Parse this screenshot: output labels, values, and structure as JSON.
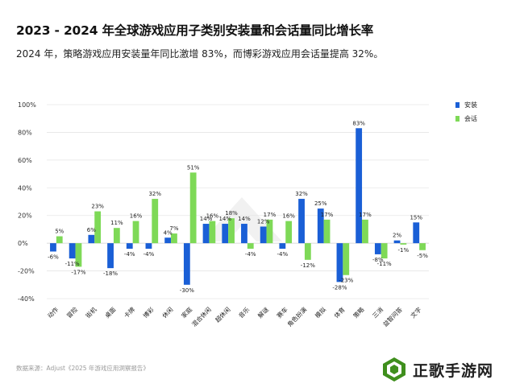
{
  "title": "2023 - 2024 年全球游戏应用子类别安装量和会话量同比增长率",
  "subtitle": "2024 年，策略游戏应用安装量年同比激增 83%，而博彩游戏应用会话量提高 32%。",
  "source": "数据来源：Adjust《2025 年游戏应用洞察报告》",
  "watermark": "正歌手游网",
  "colors": {
    "install": "#1a5fd6",
    "session": "#7ed957",
    "grid": "#e6e6e6",
    "zero": "#cfcfcf"
  },
  "chart_data": {
    "type": "bar",
    "categories": [
      "动作",
      "冒险",
      "街机",
      "桌面",
      "卡牌",
      "博彩",
      "休闲",
      "家庭",
      "混合休闲",
      "超休闲",
      "音乐",
      "解谜",
      "赛车",
      "角色扮演",
      "模拟",
      "体育",
      "策略",
      "三消",
      "益智问答",
      "文字"
    ],
    "series": [
      {
        "name": "安装",
        "color": "#1a5fd6",
        "values": [
          -6,
          -11,
          6,
          -18,
          -4,
          -4,
          4,
          -30,
          14,
          14,
          14,
          12,
          -4,
          32,
          25,
          -28,
          83,
          -8,
          2,
          15
        ]
      },
      {
        "name": "会话",
        "color": "#7ed957",
        "values": [
          5,
          -17,
          23,
          11,
          16,
          32,
          7,
          51,
          16,
          18,
          -4,
          17,
          16,
          -12,
          17,
          -23,
          17,
          -11,
          -1,
          -5
        ]
      }
    ],
    "data_labels": [
      [
        "-6%",
        "-11%",
        "6%",
        "-18%",
        "-4%",
        "-4%",
        "4%",
        "-30%",
        "14%",
        "14%",
        "14%",
        "12%",
        "-4%",
        "32%",
        "25%",
        "-28%",
        "83%",
        "-8%",
        "2%",
        "15%"
      ],
      [
        "5%",
        "-17%",
        "23%",
        "11%",
        "16%",
        "32%",
        "7%",
        "51%",
        "16%",
        "18%",
        "-4%",
        "17%",
        "16%",
        "-12%",
        "17%",
        "-23%",
        "17%",
        "-11%",
        "-1%",
        "-5%"
      ]
    ],
    "ylim": [
      -40,
      100
    ],
    "yticks": [
      -40,
      -20,
      0,
      20,
      40,
      60,
      80,
      100
    ],
    "ytick_labels": [
      "-40%",
      "-20%",
      "0%",
      "20%",
      "40%",
      "60%",
      "80%",
      "100%"
    ],
    "xlabel": "",
    "ylabel": "",
    "grid": true,
    "legend_position": "top-right"
  }
}
